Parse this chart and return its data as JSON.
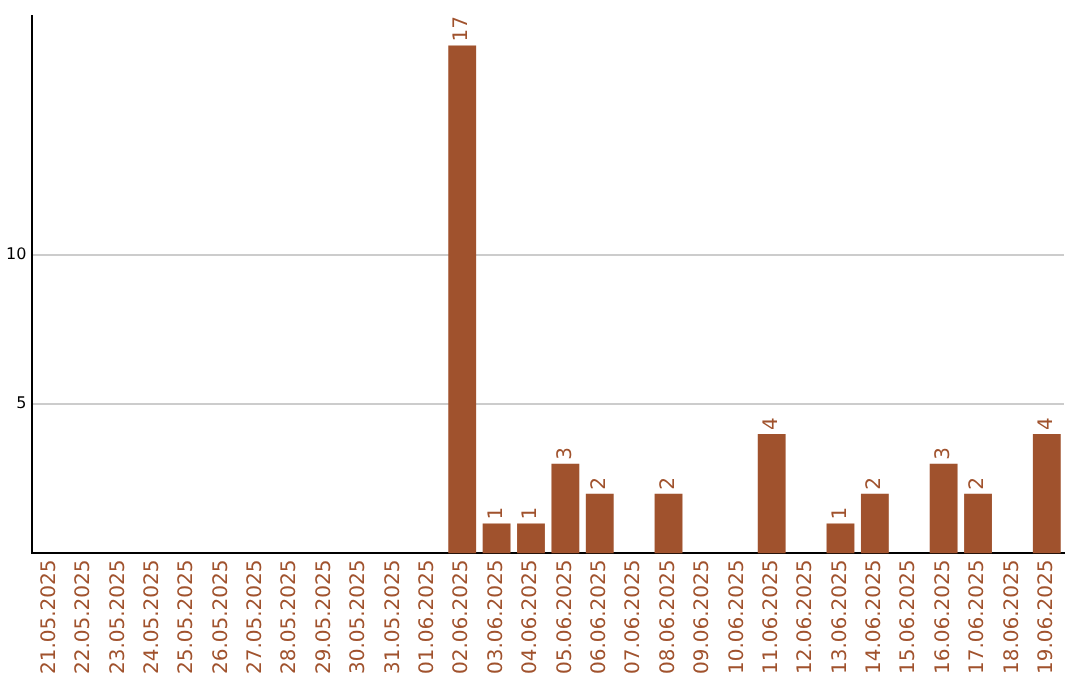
{
  "chart_data": {
    "type": "bar",
    "categories": [
      "21.05.2025",
      "22.05.2025",
      "23.05.2025",
      "24.05.2025",
      "25.05.2025",
      "26.05.2025",
      "27.05.2025",
      "28.05.2025",
      "29.05.2025",
      "30.05.2025",
      "31.05.2025",
      "01.06.2025",
      "02.06.2025",
      "03.06.2025",
      "04.06.2025",
      "05.06.2025",
      "06.06.2025",
      "07.06.2025",
      "08.06.2025",
      "09.06.2025",
      "10.06.2025",
      "11.06.2025",
      "12.06.2025",
      "13.06.2025",
      "14.06.2025",
      "15.06.2025",
      "16.06.2025",
      "17.06.2025",
      "18.06.2025",
      "19.06.2025"
    ],
    "values": [
      0,
      0,
      0,
      0,
      0,
      0,
      0,
      0,
      0,
      0,
      0,
      0,
      17,
      1,
      1,
      3,
      2,
      0,
      2,
      0,
      0,
      4,
      0,
      1,
      2,
      0,
      3,
      2,
      0,
      4
    ],
    "value_labels": [
      null,
      null,
      null,
      null,
      null,
      null,
      null,
      null,
      null,
      null,
      null,
      null,
      "17",
      "1",
      "1",
      "3",
      "2",
      null,
      "2",
      null,
      null,
      "4",
      null,
      "1",
      "2",
      null,
      "3",
      "2",
      null,
      "4"
    ],
    "color": "#a0522d",
    "ylim": [
      0,
      18
    ],
    "yticks": [
      5,
      10
    ],
    "grid": "y",
    "legend": false
  }
}
